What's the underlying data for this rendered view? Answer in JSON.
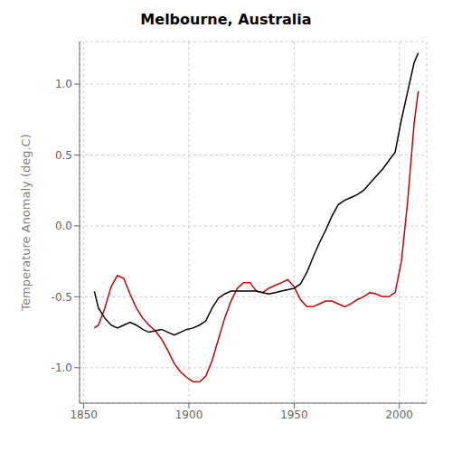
{
  "chart_data": {
    "type": "line",
    "title": "Melbourne, Australia",
    "ylabel": "Temperature Anomaly (deg.C)",
    "x": [
      1855,
      1857,
      1860,
      1863,
      1866,
      1869,
      1872,
      1875,
      1878,
      1881,
      1884,
      1887,
      1890,
      1893,
      1896,
      1899,
      1902,
      1905,
      1908,
      1911,
      1914,
      1917,
      1920,
      1923,
      1926,
      1929,
      1932,
      1935,
      1938,
      1941,
      1944,
      1947,
      1950,
      1953,
      1956,
      1959,
      1962,
      1965,
      1968,
      1971,
      1974,
      1977,
      1980,
      1983,
      1986,
      1989,
      1992,
      1995,
      1998,
      2001,
      2004,
      2007,
      2009
    ],
    "series": [
      {
        "color": "#cc0000",
        "values": [
          -0.72,
          -0.7,
          -0.58,
          -0.43,
          -0.35,
          -0.37,
          -0.48,
          -0.58,
          -0.65,
          -0.7,
          -0.74,
          -0.8,
          -0.88,
          -0.97,
          -1.03,
          -1.07,
          -1.1,
          -1.1,
          -1.06,
          -0.95,
          -0.8,
          -0.65,
          -0.53,
          -0.44,
          -0.4,
          -0.4,
          -0.46,
          -0.47,
          -0.44,
          -0.42,
          -0.4,
          -0.38,
          -0.43,
          -0.52,
          -0.57,
          -0.57,
          -0.55,
          -0.53,
          -0.53,
          -0.55,
          -0.57,
          -0.55,
          -0.52,
          -0.5,
          -0.47,
          -0.48,
          -0.5,
          -0.5,
          -0.47,
          -0.25,
          0.18,
          0.72,
          0.95
        ]
      },
      {
        "color": "#000000",
        "values": [
          -0.46,
          -0.58,
          -0.65,
          -0.7,
          -0.72,
          -0.7,
          -0.68,
          -0.7,
          -0.73,
          -0.75,
          -0.74,
          -0.73,
          -0.75,
          -0.77,
          -0.75,
          -0.73,
          -0.72,
          -0.7,
          -0.67,
          -0.58,
          -0.51,
          -0.48,
          -0.46,
          -0.46,
          -0.46,
          -0.46,
          -0.46,
          -0.47,
          -0.48,
          -0.47,
          -0.46,
          -0.45,
          -0.44,
          -0.41,
          -0.33,
          -0.22,
          -0.12,
          -0.03,
          0.07,
          0.15,
          0.18,
          0.2,
          0.22,
          0.25,
          0.3,
          0.35,
          0.4,
          0.46,
          0.52,
          0.75,
          0.95,
          1.15,
          1.22
        ]
      }
    ],
    "xlim": [
      1848,
      2013
    ],
    "xticks": [
      1850,
      1900,
      1950,
      2000
    ],
    "ylim": [
      -1.25,
      1.3
    ],
    "yticks": [
      {
        "value": -1.0,
        "label": "-1.0"
      },
      -0.5,
      {
        "value": 0.0,
        "label": "0.0"
      },
      0.5,
      {
        "value": 1.0,
        "label": "1.0"
      }
    ],
    "grid": true
  }
}
